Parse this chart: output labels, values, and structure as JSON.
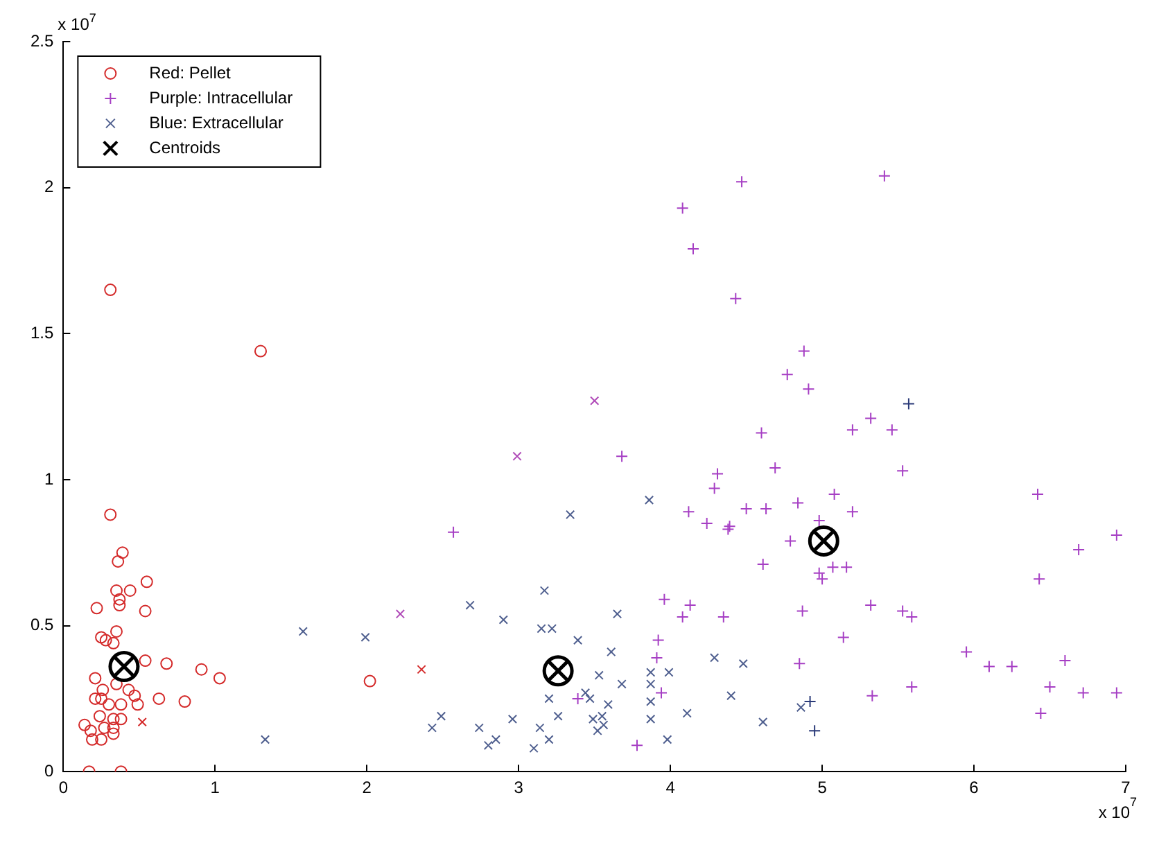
{
  "chart_data": {
    "type": "scatter",
    "legend": "top left",
    "grid": false,
    "xlim": [
      0,
      7
    ],
    "xticks": [
      0,
      1,
      2,
      3,
      4,
      5,
      6,
      7
    ],
    "ylim": [
      0,
      2.5
    ],
    "yticks": [
      0,
      0.5,
      1,
      1.5,
      2,
      2.5
    ],
    "annotations": [
      "x 10$^{7}$",
      "x 10$^{7}$"
    ],
    "series": [
      {
        "name": "Red: Pellet",
        "color": "#d42a2a",
        "marker": "circle",
        "x": [
          0.31,
          1.3,
          0.31,
          0.39,
          0.36,
          0.35,
          0.44,
          0.55,
          0.37,
          0.37,
          0.22,
          0.54,
          0.25,
          0.35,
          0.28,
          0.33,
          0.54,
          0.68,
          0.91,
          1.03,
          0.21,
          0.35,
          0.43,
          0.26,
          0.21,
          0.25,
          0.47,
          0.49,
          0.63,
          0.8,
          0.38,
          0.3,
          0.24,
          0.33,
          0.14,
          0.18,
          0.27,
          0.33,
          0.38,
          0.19,
          0.25,
          0.33,
          0.17,
          0.38,
          2.02
        ],
        "values": [
          1.65,
          1.44,
          0.88,
          0.75,
          0.72,
          0.62,
          0.62,
          0.65,
          0.59,
          0.57,
          0.56,
          0.55,
          0.46,
          0.48,
          0.45,
          0.44,
          0.38,
          0.37,
          0.35,
          0.32,
          0.32,
          0.3,
          0.28,
          0.28,
          0.25,
          0.25,
          0.26,
          0.23,
          0.25,
          0.24,
          0.23,
          0.23,
          0.19,
          0.18,
          0.16,
          0.14,
          0.15,
          0.15,
          0.18,
          0.11,
          0.11,
          0.13,
          0,
          0,
          0.31
        ]
      },
      {
        "name": "Purple: Intracellular",
        "color": "#a63fc4",
        "marker": "cross",
        "x": [
          2.57,
          3.68,
          3.39,
          3.78,
          3.94,
          3.91,
          3.92,
          3.96,
          4.08,
          4.13,
          4.35,
          4.12,
          4.24,
          4.38,
          4.31,
          4.29,
          4.47,
          5.41,
          4.08,
          4.15,
          4.43,
          4.88,
          4.77,
          4.91,
          4.6,
          5.2,
          5.32,
          5.46,
          4.69,
          5.53,
          5.08,
          4.84,
          5.2,
          4.63,
          4.5,
          4.39,
          4.98,
          4.79,
          4.61,
          4.98,
          5.0,
          5.07,
          5.16,
          6.42,
          6.69,
          6.94,
          6.43,
          4.87,
          5.32,
          5.53,
          5.59,
          5.14,
          4.85,
          5.95,
          6.1,
          6.25,
          6.6,
          6.5,
          6.72,
          6.94,
          6.44,
          5.33,
          5.59,
          5.57,
          4.92,
          4.95
        ],
        "values": [
          0.82,
          1.08,
          0.25,
          0.09,
          0.27,
          0.39,
          0.45,
          0.59,
          0.53,
          0.57,
          0.53,
          0.89,
          0.85,
          0.83,
          1.02,
          0.97,
          2.02,
          2.04,
          1.93,
          1.79,
          1.62,
          1.44,
          1.36,
          1.31,
          1.16,
          1.17,
          1.21,
          1.17,
          1.04,
          1.03,
          0.95,
          0.92,
          0.89,
          0.9,
          0.9,
          0.84,
          0.86,
          0.79,
          0.71,
          0.68,
          0.66,
          0.7,
          0.7,
          0.95,
          0.76,
          0.81,
          0.66,
          0.55,
          0.57,
          0.55,
          0.53,
          0.46,
          0.37,
          0.41,
          0.36,
          0.36,
          0.38,
          0.29,
          0.27,
          0.27,
          0.2,
          0.26,
          0.29,
          1.26,
          0.24,
          0.14
        ],
        "colors": [
          "#a63fc4",
          "#a63fc4",
          "#a63fc4",
          "#a63fc4",
          "#a63fc4",
          "#a63fc4",
          "#a63fc4",
          "#a63fc4",
          "#a63fc4",
          "#a63fc4",
          "#a63fc4",
          "#a63fc4",
          "#a63fc4",
          "#a63fc4",
          "#a63fc4",
          "#a63fc4",
          "#a63fc4",
          "#a63fc4",
          "#a63fc4",
          "#a63fc4",
          "#a63fc4",
          "#a63fc4",
          "#a63fc4",
          "#a63fc4",
          "#a63fc4",
          "#a63fc4",
          "#a63fc4",
          "#a63fc4",
          "#a63fc4",
          "#a63fc4",
          "#a63fc4",
          "#a63fc4",
          "#a63fc4",
          "#a63fc4",
          "#a63fc4",
          "#a63fc4",
          "#a63fc4",
          "#a63fc4",
          "#a63fc4",
          "#a63fc4",
          "#a63fc4",
          "#a63fc4",
          "#a63fc4",
          "#a63fc4",
          "#a63fc4",
          "#a63fc4",
          "#a63fc4",
          "#a63fc4",
          "#a63fc4",
          "#a63fc4",
          "#a63fc4",
          "#a63fc4",
          "#a63fc4",
          "#a63fc4",
          "#a63fc4",
          "#a63fc4",
          "#a63fc4",
          "#a63fc4",
          "#a63fc4",
          "#a63fc4",
          "#a63fc4",
          "#a63fc4",
          "#a63fc4",
          "#2a3a78",
          "#2a3a78",
          "#2a3a78"
        ]
      },
      {
        "name": "Blue: Extracellular",
        "color": "#4f5f8f",
        "x": [
          1.58,
          1.99,
          1.33,
          2.43,
          2.49,
          2.74,
          2.8,
          2.85,
          2.68,
          2.9,
          2.96,
          3.1,
          3.14,
          3.2,
          3.2,
          3.26,
          3.17,
          3.15,
          3.22,
          3.39,
          3.34,
          3.86,
          3.44,
          3.47,
          3.53,
          3.49,
          3.52,
          3.55,
          3.56,
          3.59,
          3.61,
          3.65,
          3.68,
          3.87,
          3.87,
          3.87,
          3.87,
          3.99,
          3.98,
          4.11,
          4.29,
          4.4,
          4.48,
          4.61,
          4.86,
          0.52,
          2.36,
          2.22,
          2.99,
          3.5
        ],
        "values": [
          0.48,
          0.46,
          0.11,
          0.15,
          0.19,
          0.15,
          0.09,
          0.11,
          0.57,
          0.52,
          0.18,
          0.08,
          0.15,
          0.11,
          0.25,
          0.19,
          0.62,
          0.49,
          0.49,
          0.45,
          0.88,
          0.93,
          0.27,
          0.25,
          0.33,
          0.18,
          0.14,
          0.19,
          0.16,
          0.23,
          0.41,
          0.54,
          0.3,
          0.34,
          0.3,
          0.24,
          0.18,
          0.34,
          0.11,
          0.2,
          0.39,
          0.26,
          0.37,
          0.17,
          0.22,
          0.17,
          0.35,
          0.54,
          1.08,
          1.27
        ],
        "colors": [
          "#4f5f8f",
          "#4f5f8f",
          "#4f5f8f",
          "#4f5f8f",
          "#4f5f8f",
          "#4f5f8f",
          "#4f5f8f",
          "#4f5f8f",
          "#4f5f8f",
          "#4f5f8f",
          "#4f5f8f",
          "#4f5f8f",
          "#4f5f8f",
          "#4f5f8f",
          "#4f5f8f",
          "#4f5f8f",
          "#4f5f8f",
          "#4f5f8f",
          "#4f5f8f",
          "#4f5f8f",
          "#4f5f8f",
          "#4f5f8f",
          "#4f5f8f",
          "#4f5f8f",
          "#4f5f8f",
          "#4f5f8f",
          "#4f5f8f",
          "#4f5f8f",
          "#4f5f8f",
          "#4f5f8f",
          "#4f5f8f",
          "#4f5f8f",
          "#4f5f8f",
          "#4f5f8f",
          "#4f5f8f",
          "#4f5f8f",
          "#4f5f8f",
          "#4f5f8f",
          "#4f5f8f",
          "#4f5f8f",
          "#4f5f8f",
          "#4f5f8f",
          "#4f5f8f",
          "#4f5f8f",
          "#4f5f8f",
          "#d42a2a",
          "#d42a2a",
          "#b04ab8",
          "#b04ab8",
          "#b04ab8"
        ]
      },
      {
        "name": "Centroids",
        "color": "#000000",
        "x": [
          0.4,
          3.26,
          5.01
        ],
        "values": [
          0.36,
          0.345,
          0.79
        ]
      }
    ]
  }
}
